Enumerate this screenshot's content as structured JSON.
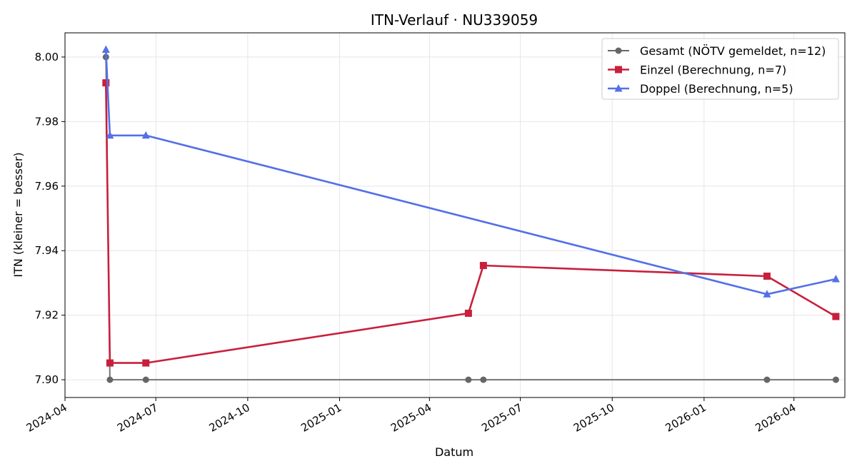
{
  "chart_data": {
    "type": "line",
    "title": "ITN-Verlauf · NU339059",
    "xlabel": "Datum",
    "ylabel": "ITN  (kleiner = besser)",
    "x_type": "date",
    "xlim": [
      "2024-04-01",
      "2026-05-22"
    ],
    "ylim": [
      7.8945,
      8.0075
    ],
    "x_ticks": [
      "2024-04-01",
      "2024-07-01",
      "2024-10-01",
      "2025-01-01",
      "2025-04-01",
      "2025-07-01",
      "2025-10-01",
      "2026-01-01",
      "2026-04-01"
    ],
    "x_tick_labels": [
      "2024-04",
      "2024-07",
      "2024-10",
      "2025-01",
      "2025-04",
      "2025-07",
      "2025-10",
      "2026-01",
      "2026-04"
    ],
    "y_ticks": [
      7.9,
      7.92,
      7.94,
      7.96,
      7.98,
      8.0
    ],
    "y_tick_labels": [
      "7.90",
      "7.92",
      "7.94",
      "7.96",
      "7.98",
      "8.00"
    ],
    "grid": true,
    "legend_position": "top-right",
    "series": [
      {
        "name": "Gesamt (NÖTV gemeldet, n=12)",
        "color": "#666666",
        "marker": "circle",
        "points": [
          {
            "x": "2024-05-12",
            "y": 8.0
          },
          {
            "x": "2024-05-16",
            "y": 7.9
          },
          {
            "x": "2024-06-21",
            "y": 7.9
          },
          {
            "x": "2025-05-10",
            "y": 7.9
          },
          {
            "x": "2025-05-25",
            "y": 7.9
          },
          {
            "x": "2026-03-05",
            "y": 7.9
          },
          {
            "x": "2026-05-13",
            "y": 7.9
          }
        ]
      },
      {
        "name": "Einzel (Berechnung, n=7)",
        "color": "#c8203c",
        "marker": "square",
        "points": [
          {
            "x": "2024-05-12",
            "y": 7.992
          },
          {
            "x": "2024-05-16",
            "y": 7.9052
          },
          {
            "x": "2024-06-21",
            "y": 7.9052
          },
          {
            "x": "2025-05-10",
            "y": 7.9206
          },
          {
            "x": "2025-05-25",
            "y": 7.9354
          },
          {
            "x": "2026-03-05",
            "y": 7.9321
          },
          {
            "x": "2026-05-13",
            "y": 7.9196
          }
        ]
      },
      {
        "name": "Doppel (Berechnung, n=5)",
        "color": "#5470e8",
        "marker": "triangle",
        "points": [
          {
            "x": "2024-05-12",
            "y": 8.0023
          },
          {
            "x": "2024-05-16",
            "y": 7.9757
          },
          {
            "x": "2024-06-21",
            "y": 7.9757
          },
          {
            "x": "2026-03-05",
            "y": 7.9265
          },
          {
            "x": "2026-05-13",
            "y": 7.9312
          }
        ]
      }
    ]
  }
}
